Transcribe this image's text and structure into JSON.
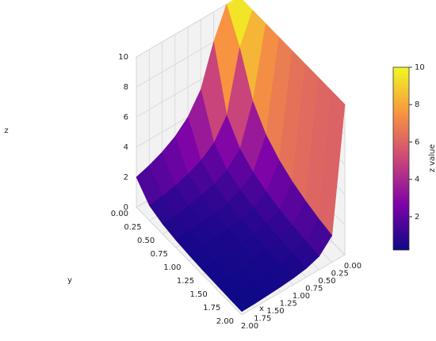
{
  "chart_data": {
    "type": "surface",
    "x": [
      0,
      0.25,
      0.5,
      0.75,
      1,
      1.25,
      1.5,
      1.75,
      2
    ],
    "y": [
      0,
      0.25,
      0.5,
      0.75,
      1,
      1.25,
      1.5,
      1.75,
      2
    ],
    "z": [
      [
        10,
        10,
        8,
        5.33,
        4,
        3.2,
        2.67,
        2.29,
        2
      ],
      [
        10,
        8,
        4,
        2.67,
        2,
        1.6,
        1.33,
        1.14,
        1
      ],
      [
        10,
        5.33,
        2.67,
        1.78,
        1.33,
        1.07,
        0.89,
        0.76,
        0.67
      ],
      [
        10,
        4,
        2,
        1.33,
        1,
        0.8,
        0.67,
        0.57,
        0.5
      ],
      [
        10,
        3.2,
        1.6,
        1.07,
        0.8,
        0.64,
        0.53,
        0.46,
        0.4
      ],
      [
        10,
        2.67,
        1.33,
        0.89,
        0.67,
        0.53,
        0.44,
        0.38,
        0.33
      ],
      [
        10,
        2.29,
        1.14,
        0.76,
        0.57,
        0.46,
        0.38,
        0.33,
        0.29
      ],
      [
        10,
        2,
        1,
        0.67,
        0.5,
        0.4,
        0.33,
        0.29,
        0.25
      ],
      [
        10,
        1.78,
        0.89,
        0.59,
        0.44,
        0.36,
        0.3,
        0.25,
        0.22
      ]
    ],
    "xlabel": "x",
    "ylabel": "y",
    "zlabel": "z",
    "xlim": [
      0,
      2
    ],
    "ylim": [
      0,
      2
    ],
    "zlim": [
      0,
      10
    ],
    "xticks": [
      {
        "value": 0,
        "label": "0.00"
      },
      {
        "value": 0.25,
        "label": "0.25"
      },
      {
        "value": 0.5,
        "label": "0.50"
      },
      {
        "value": 0.75,
        "label": "0.75"
      },
      {
        "value": 1,
        "label": "1.00"
      },
      {
        "value": 1.25,
        "label": "1.25"
      },
      {
        "value": 1.5,
        "label": "1.50"
      },
      {
        "value": 1.75,
        "label": "1.75"
      },
      {
        "value": 2,
        "label": "2.00"
      }
    ],
    "yticks": [
      {
        "value": 0,
        "label": "0.00"
      },
      {
        "value": 0.25,
        "label": "0.25"
      },
      {
        "value": 0.5,
        "label": "0.50"
      },
      {
        "value": 0.75,
        "label": "0.75"
      },
      {
        "value": 1,
        "label": "1.00"
      },
      {
        "value": 1.25,
        "label": "1.25"
      },
      {
        "value": 1.5,
        "label": "1.50"
      },
      {
        "value": 1.75,
        "label": "1.75"
      },
      {
        "value": 2,
        "label": "2.00"
      }
    ],
    "zticks": [
      0,
      2,
      4,
      6,
      8,
      10
    ],
    "colormap": "plasma",
    "colorbar": {
      "label": "z value",
      "clim": [
        0.22,
        10
      ],
      "ticks": [
        2,
        4,
        6,
        8,
        10
      ]
    },
    "grid": true
  }
}
